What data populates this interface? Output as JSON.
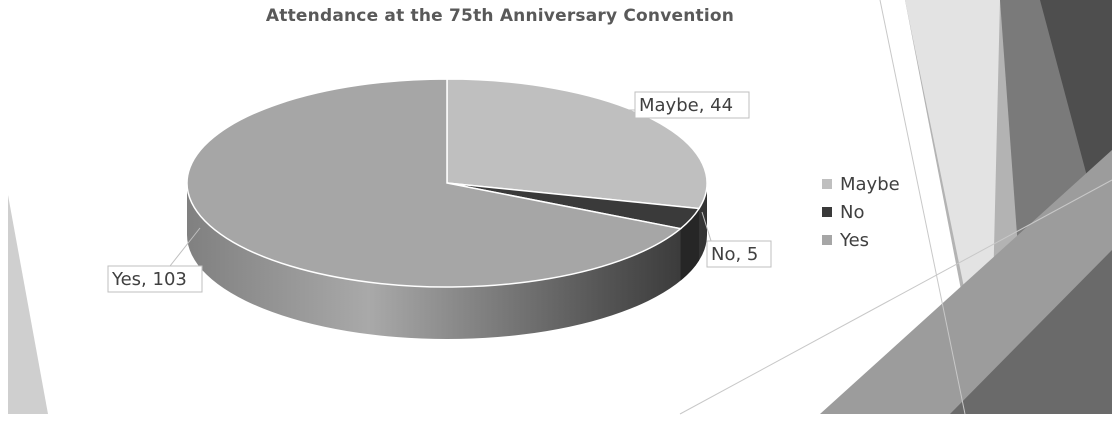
{
  "chart_data": {
    "type": "pie",
    "title": "Attendance at the 75th Anniversary Convention",
    "slices": [
      {
        "label": "Maybe",
        "value": 44,
        "color": "#bfbfbf",
        "data_label": "Maybe, 44"
      },
      {
        "label": "No",
        "value": 5,
        "color": "#3a3a3a",
        "data_label": "No, 5"
      },
      {
        "label": "Yes",
        "value": 103,
        "color": "#a6a6a6",
        "data_label": "Yes, 103"
      }
    ],
    "legend_position": "right",
    "three_d": true
  }
}
